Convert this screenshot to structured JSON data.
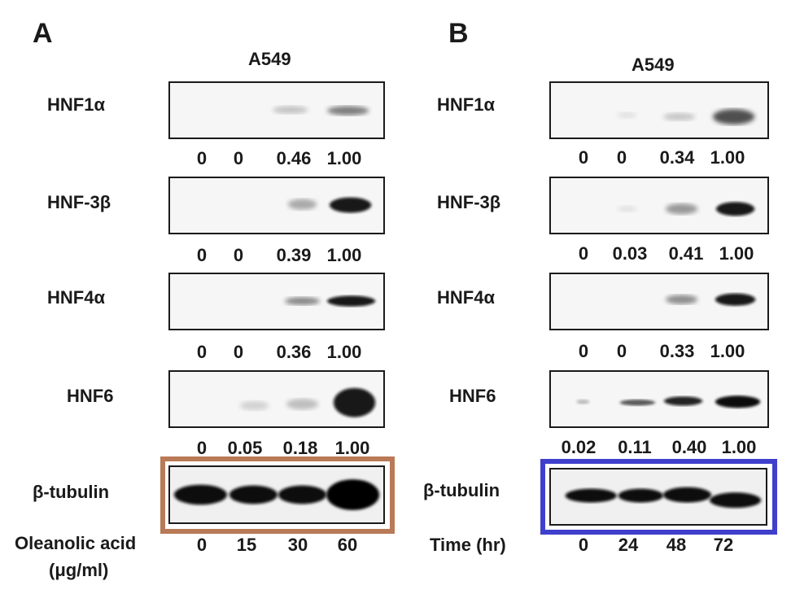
{
  "colors": {
    "highlight_a": "#b97a57",
    "highlight_b": "#3f3fcc"
  },
  "panel_a": {
    "letter": "A",
    "cell_line": "A549",
    "rows": [
      {
        "label": "HNF1α",
        "values": [
          "0",
          "0",
          "0.46",
          "1.00"
        ]
      },
      {
        "label": "HNF-3β",
        "values": [
          "0",
          "0",
          "0.39",
          "1.00"
        ]
      },
      {
        "label": "HNF4α",
        "values": [
          "0",
          "0",
          "0.36",
          "1.00"
        ]
      },
      {
        "label": "HNF6",
        "values": [
          "0",
          "0.05",
          "0.18",
          "1.00"
        ]
      }
    ],
    "loading_control": "β-tubulin",
    "x_label_line1": "Oleanolic acid",
    "x_label_line2": "(μg/ml)",
    "x_values": [
      "0",
      "15",
      "30",
      "60"
    ]
  },
  "panel_b": {
    "letter": "B",
    "cell_line": "A549",
    "rows": [
      {
        "label": "HNF1α",
        "values": [
          "0",
          "0",
          "0.34",
          "1.00"
        ]
      },
      {
        "label": "HNF-3β",
        "values": [
          "0",
          "0.03",
          "0.41",
          "1.00"
        ]
      },
      {
        "label": "HNF4α",
        "values": [
          "0",
          "0",
          "0.33",
          "1.00"
        ]
      },
      {
        "label": "HNF6",
        "values": [
          "0.02",
          "0.11",
          "0.40",
          "1.00"
        ]
      }
    ],
    "loading_control": "β-tubulin",
    "x_label": "Time (hr)",
    "x_values": [
      "0",
      "24",
      "48",
      "72"
    ]
  }
}
